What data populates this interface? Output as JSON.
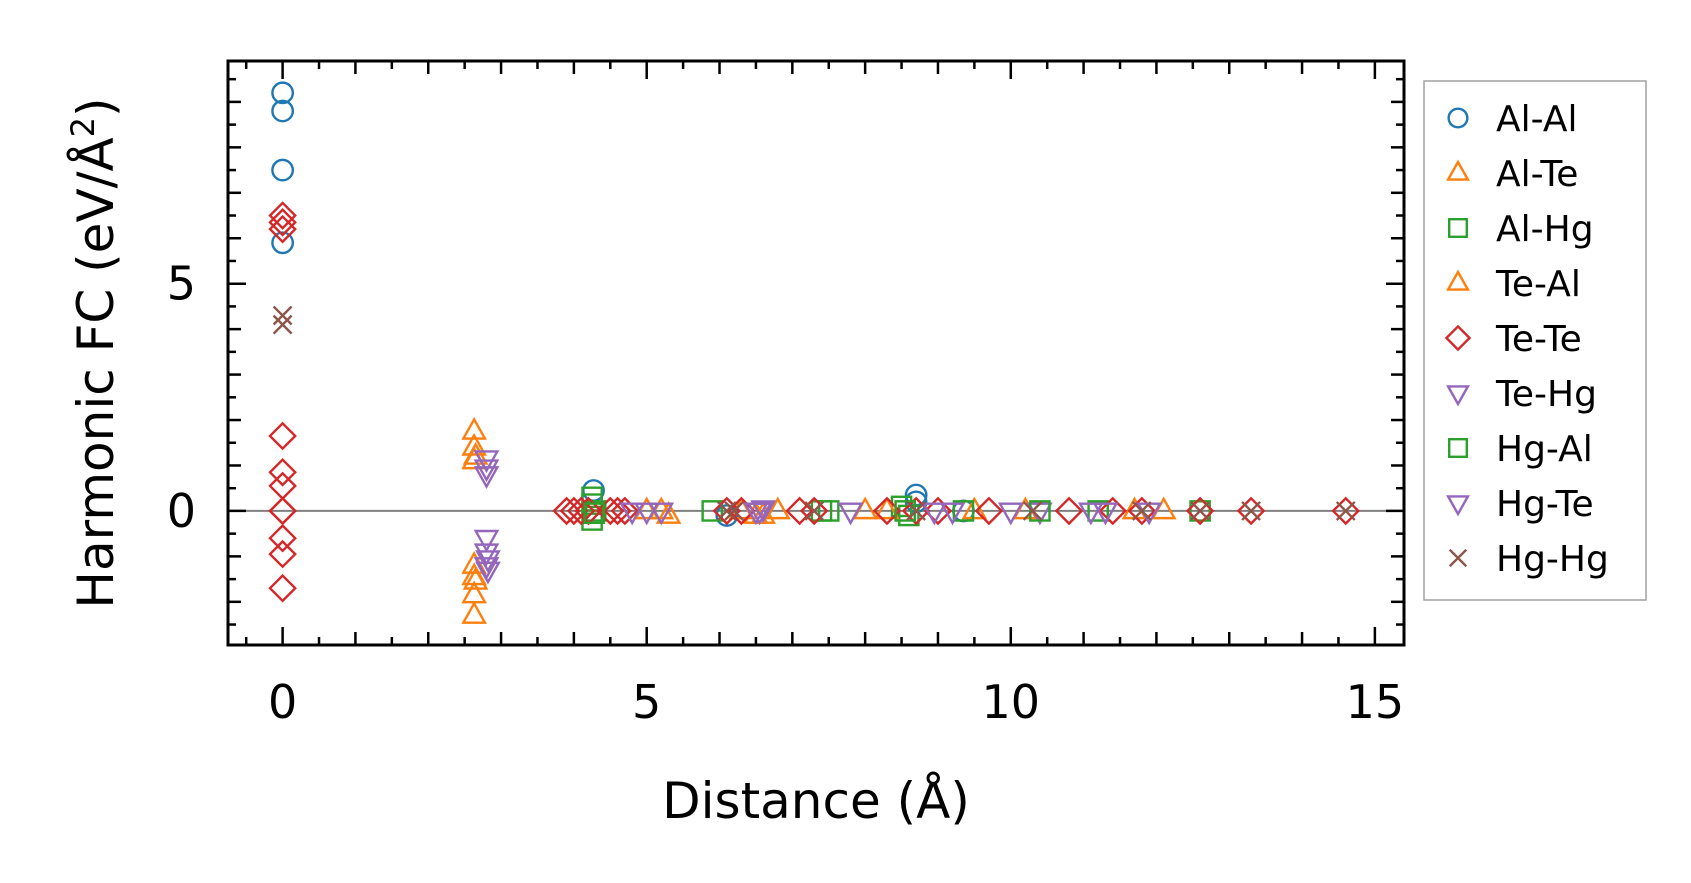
{
  "chart_data": {
    "type": "scatter",
    "xlabel": "Distance (Å)",
    "ylabel_main": "Harmonic FC (eV/Å",
    "ylabel_sup": "2",
    "ylabel_close": ")",
    "xlim": [
      -0.75,
      15.4
    ],
    "ylim": [
      -2.95,
      9.9
    ],
    "xticks": [
      0,
      5,
      10,
      15
    ],
    "xtick_labels": [
      "0",
      "5",
      "10",
      "15"
    ],
    "yticks": [
      0,
      5
    ],
    "ytick_labels": [
      "0",
      "5"
    ],
    "zero_line": true,
    "grid": false,
    "legend_position": "outside-right",
    "series": [
      {
        "name": "Al-Al",
        "marker": "circle",
        "color": "#1f77b4",
        "x": [
          0,
          0,
          0,
          0,
          4.27,
          8.7,
          8.7,
          6.1,
          9.35
        ],
        "y": [
          9.2,
          8.8,
          7.5,
          5.9,
          0.45,
          0.35,
          0.2,
          -0.1,
          0.0
        ]
      },
      {
        "name": "Al-Te",
        "marker": "triangle-up",
        "color": "#ff7f0e",
        "x": [
          2.63,
          2.63,
          2.63,
          2.63,
          2.63,
          2.63,
          2.63,
          5.2,
          5.3,
          6.5,
          6.8,
          8.0,
          9.5,
          12.1
        ],
        "y": [
          1.75,
          1.4,
          1.1,
          -1.2,
          -1.45,
          -1.85,
          -2.3,
          0.0,
          -0.1,
          -0.1,
          0.0,
          0.0,
          0.0,
          0.0
        ]
      },
      {
        "name": "Al-Hg",
        "marker": "square",
        "color": "#2ca02c",
        "x": [
          4.25,
          4.25,
          4.25,
          4.3,
          5.9,
          7.4,
          7.5,
          8.5,
          8.6,
          9.35,
          11.2,
          12.6
        ],
        "y": [
          0.3,
          0.15,
          -0.2,
          0.0,
          0.0,
          0.0,
          0.0,
          0.1,
          -0.1,
          0.0,
          0.0,
          0.0
        ]
      },
      {
        "name": "Te-Al",
        "marker": "triangle-up",
        "color": "#ff7f0e",
        "x": [
          2.65,
          2.65,
          5.0,
          6.3,
          6.6,
          8.3,
          10.2,
          11.7
        ],
        "y": [
          1.2,
          -1.55,
          0.0,
          0.0,
          -0.1,
          0.0,
          0.0,
          0.0
        ]
      },
      {
        "name": "Te-Te",
        "marker": "diamond",
        "color": "#d62728",
        "x": [
          0,
          0,
          0,
          0,
          0,
          0,
          0,
          0,
          0,
          0,
          0,
          3.9,
          4.0,
          4.1,
          4.2,
          4.5,
          4.6,
          4.7,
          6.1,
          6.3,
          7.1,
          7.3,
          8.3,
          8.7,
          9.0,
          9.7,
          10.8,
          11.4,
          11.8,
          12.6,
          13.3,
          14.6
        ],
        "y": [
          6.5,
          6.35,
          6.2,
          1.65,
          0.85,
          0.55,
          -0.6,
          -0.95,
          -1.7,
          0.0,
          0.0,
          0.0,
          0.0,
          0.0,
          0.0,
          0.0,
          0.0,
          0.0,
          0.0,
          0.0,
          0.0,
          0.0,
          0.0,
          0.0,
          0.0,
          0.0,
          0.0,
          0.0,
          0.0,
          0.0,
          0.0,
          0.0
        ]
      },
      {
        "name": "Te-Hg",
        "marker": "triangle-down",
        "color": "#9467bd",
        "x": [
          2.8,
          2.8,
          2.8,
          2.8,
          2.8,
          2.8,
          4.8,
          5.0,
          5.2,
          6.5,
          6.6,
          7.8,
          9.2,
          10.0,
          10.4,
          11.3,
          11.9
        ],
        "y": [
          1.15,
          0.95,
          0.8,
          -0.6,
          -0.9,
          -1.2,
          0.0,
          0.0,
          0.0,
          0.0,
          0.05,
          0.0,
          0.0,
          0.0,
          0.0,
          0.0,
          0.0
        ]
      },
      {
        "name": "Hg-Al",
        "marker": "square",
        "color": "#2ca02c",
        "x": [
          4.28,
          8.55,
          10.4
        ],
        "y": [
          -0.05,
          0.0,
          0.0
        ]
      },
      {
        "name": "Hg-Te",
        "marker": "triangle-down",
        "color": "#9467bd",
        "x": [
          2.82,
          2.82,
          6.55,
          8.95,
          11.1
        ],
        "y": [
          -1.05,
          -1.3,
          0.0,
          0.0,
          0.0
        ]
      },
      {
        "name": "Hg-Hg",
        "marker": "x",
        "color": "#8c564b",
        "x": [
          0,
          0,
          6.1,
          6.2,
          7.3,
          8.7,
          10.3,
          11.8,
          12.6,
          13.3,
          14.6
        ],
        "y": [
          4.3,
          4.1,
          0.0,
          0.0,
          0.0,
          0.0,
          0.0,
          0.0,
          0.0,
          0.0,
          0.0
        ]
      }
    ]
  }
}
